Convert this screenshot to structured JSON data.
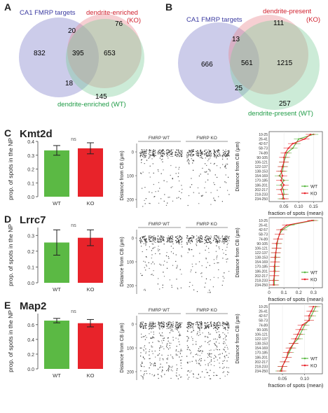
{
  "panel_labels": {
    "A": "A",
    "B": "B",
    "C": "C",
    "D": "D",
    "E": "E"
  },
  "venn_A": {
    "label_fmrp": "CA1 FMRP targets",
    "label_ko": "dendrite-enriched",
    "label_ko2": "(KO)",
    "label_wt": "dendrite-enriched (WT)",
    "n_fmrp_only": "832",
    "n_fmrp_ko": "20",
    "n_ko_only": "76",
    "n_all": "395",
    "n_ko_wt": "653",
    "n_fmrp_wt": "18",
    "n_wt_only": "145",
    "colors": {
      "fmrp": "#8f8fd0",
      "ko": "#e8888f",
      "wt": "#7fcc9a"
    }
  },
  "venn_B": {
    "label_fmrp": "CA1 FMRP targets",
    "label_ko": "dendrite-present",
    "label_ko2": "(KO)",
    "label_wt": "dendrite-present (WT)",
    "n_fmrp_only": "666",
    "n_fmrp_ko": "13",
    "n_ko_only": "111",
    "n_all": "561",
    "n_ko_wt": "1215",
    "n_fmrp_wt": "25",
    "n_wt_only": "257"
  },
  "gene_rows": [
    {
      "gene": "Kmt2d",
      "ns": "ns",
      "img_wt": "FMRP WT",
      "img_ko": "FMRP KO"
    },
    {
      "gene": "Lrrc7",
      "ns": "ns",
      "img_wt": "FMRP WT",
      "img_ko": "FMRP KO"
    },
    {
      "gene": "Map2",
      "ns": "ns",
      "img_wt": "FMRP WT",
      "img_ko": "FMRP KO"
    }
  ],
  "common": {
    "bar_ylabel": "prop. of spots in the NP",
    "img_ylabel": "Distance from CB (μm)",
    "prof_ylabel": "Distance from CB (μm)",
    "prof_xlabel": "fraction of spots (mean)",
    "legend_wt": "WT",
    "legend_ko": "KO",
    "bin_labels": [
      "10-25",
      "26-41",
      "42-57",
      "58-73",
      "74-89",
      "90-105",
      "106-121",
      "122-137",
      "138-153",
      "154-169",
      "170-185",
      "186-201",
      "202-217",
      "218-233",
      "234-250"
    ],
    "img_ticks": [
      "0",
      "100",
      "200"
    ],
    "colors": {
      "wt": "#5bb944",
      "ko": "#e8232a"
    }
  },
  "chart_data": [
    {
      "type": "bar",
      "title": "Kmt2d",
      "categories": [
        "WT",
        "KO"
      ],
      "values": [
        0.335,
        0.35
      ],
      "errors": [
        0.035,
        0.04
      ],
      "ylim": [
        0,
        0.4
      ],
      "yticks": [
        "0.0",
        "0.1",
        "0.2",
        "0.3",
        "0.4"
      ],
      "ylabel": "prop. of spots in the NP"
    },
    {
      "type": "line",
      "title": "Kmt2d",
      "xlabel": "fraction of spots (mean)",
      "ylabel": "Distance from CB (μm)",
      "xlim": [
        0,
        0.18
      ],
      "xticks": [
        0.05,
        0.1,
        0.15
      ],
      "xtick_labels": [
        "0.05",
        "0.10",
        "0.15"
      ],
      "categories": [
        "10-25",
        "26-41",
        "42-57",
        "58-73",
        "74-89",
        "90-105",
        "106-121",
        "122-137",
        "138-153",
        "154-169",
        "170-185",
        "186-201",
        "202-217",
        "218-233",
        "234-250"
      ],
      "series": [
        {
          "name": "WT",
          "values": [
            0.15,
            0.1,
            0.09,
            0.08,
            0.06,
            0.055,
            0.05,
            0.048,
            0.045,
            0.035,
            0.05,
            0.04,
            0.048,
            0.05,
            0.045
          ]
        },
        {
          "name": "KO",
          "values": [
            0.14,
            0.12,
            0.08,
            0.065,
            0.055,
            0.05,
            0.05,
            0.045,
            0.04,
            0.045,
            0.04,
            0.05,
            0.04,
            0.045,
            0.05
          ]
        }
      ]
    },
    {
      "type": "bar",
      "title": "Lrrc7",
      "categories": [
        "WT",
        "KO"
      ],
      "values": [
        0.255,
        0.285
      ],
      "errors": [
        0.08,
        0.05
      ],
      "ylim": [
        0,
        0.35
      ],
      "yticks": [
        "0.0",
        "0.1",
        "0.2",
        "0.3"
      ],
      "ylabel": "prop. of spots in the NP"
    },
    {
      "type": "line",
      "title": "Lrrc7",
      "xlabel": "fraction of spots (mean)",
      "ylabel": "Distance from CB (μm)",
      "xlim": [
        0,
        0.36
      ],
      "xticks": [
        0,
        0.1,
        0.2,
        0.3
      ],
      "xtick_labels": [
        "0",
        "0.1",
        "0.2",
        "0.3"
      ],
      "categories": [
        "10-25",
        "26-41",
        "42-57",
        "58-73",
        "74-89",
        "90-105",
        "106-121",
        "122-137",
        "138-153",
        "154-169",
        "170-185",
        "186-201",
        "202-217",
        "218-233",
        "234-250"
      ],
      "series": [
        {
          "name": "WT",
          "values": [
            0.3,
            0.14,
            0.09,
            0.07,
            0.06,
            0.055,
            0.05,
            0.045,
            0.045,
            0.04,
            0.04,
            0.04,
            0.035,
            0.035,
            0.035
          ]
        },
        {
          "name": "KO",
          "values": [
            0.29,
            0.12,
            0.08,
            0.07,
            0.06,
            0.05,
            0.05,
            0.045,
            0.04,
            0.04,
            0.035,
            0.035,
            0.035,
            0.03,
            0.03
          ]
        }
      ]
    },
    {
      "type": "bar",
      "title": "Map2",
      "categories": [
        "WT",
        "KO"
      ],
      "values": [
        0.655,
        0.62
      ],
      "errors": [
        0.03,
        0.05
      ],
      "ylim": [
        0,
        0.75
      ],
      "yticks": [
        "0.0",
        "0.2",
        "0.4",
        "0.6"
      ],
      "ylabel": "prop. of spots in the NP"
    },
    {
      "type": "line",
      "title": "Map2",
      "xlabel": "fraction of spots (mean)",
      "ylabel": "Distance from CB (μm)",
      "xlim": [
        0.02,
        0.14
      ],
      "xticks": [
        0.05,
        0.1
      ],
      "xtick_labels": [
        "0.05",
        "0.10"
      ],
      "categories": [
        "10-25",
        "26-41",
        "42-57",
        "58-73",
        "74-89",
        "90-105",
        "106-121",
        "122-137",
        "138-153",
        "154-169",
        "170-185",
        "186-201",
        "202-217",
        "218-233",
        "234-250"
      ],
      "series": [
        {
          "name": "WT",
          "values": [
            0.125,
            0.12,
            0.115,
            0.11,
            0.1,
            0.095,
            0.09,
            0.085,
            0.075,
            0.07,
            0.065,
            0.06,
            0.055,
            0.05,
            0.045
          ]
        },
        {
          "name": "KO",
          "values": [
            0.12,
            0.115,
            0.11,
            0.11,
            0.095,
            0.09,
            0.085,
            0.08,
            0.075,
            0.068,
            0.062,
            0.06,
            0.055,
            0.05,
            0.048
          ]
        }
      ]
    }
  ]
}
